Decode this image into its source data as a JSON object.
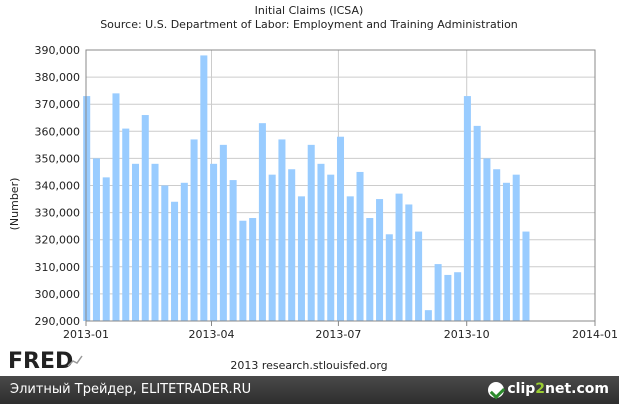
{
  "chart_data": {
    "type": "bar",
    "title": "Initial Claims (ICSA)",
    "subtitle": "Source: U.S. Department of Labor: Employment and Training Administration",
    "ylabel": "(Number)",
    "ylim": [
      290000,
      390000
    ],
    "y_ticks": [
      "290,000",
      "300,000",
      "310,000",
      "320,000",
      "330,000",
      "340,000",
      "350,000",
      "360,000",
      "370,000",
      "380,000",
      "390,000"
    ],
    "x_ticks": [
      "2013-01",
      "2013-04",
      "2013-07",
      "2013-10",
      "2014-01"
    ],
    "grid": true,
    "bar_color": "#99ccff",
    "x": [
      "2013-01-05",
      "2013-01-12",
      "2013-01-19",
      "2013-01-26",
      "2013-02-02",
      "2013-02-09",
      "2013-02-16",
      "2013-02-23",
      "2013-03-02",
      "2013-03-09",
      "2013-03-16",
      "2013-03-23",
      "2013-03-30",
      "2013-04-06",
      "2013-04-13",
      "2013-04-20",
      "2013-04-27",
      "2013-05-04",
      "2013-05-11",
      "2013-05-18",
      "2013-05-25",
      "2013-06-01",
      "2013-06-08",
      "2013-06-15",
      "2013-06-22",
      "2013-06-29",
      "2013-07-06",
      "2013-07-13",
      "2013-07-20",
      "2013-07-27",
      "2013-08-03",
      "2013-08-10",
      "2013-08-17",
      "2013-08-24",
      "2013-08-31",
      "2013-09-07",
      "2013-09-14",
      "2013-09-21",
      "2013-09-28",
      "2013-10-05",
      "2013-10-12",
      "2013-10-19",
      "2013-10-26",
      "2013-11-02",
      "2013-11-09",
      "2013-11-16"
    ],
    "values": [
      373000,
      350000,
      343000,
      374000,
      361000,
      348000,
      366000,
      348000,
      340000,
      334000,
      341000,
      357000,
      388000,
      348000,
      355000,
      342000,
      327000,
      328000,
      363000,
      344000,
      357000,
      346000,
      336000,
      355000,
      348000,
      344000,
      358000,
      336000,
      345000,
      328000,
      335000,
      322000,
      337000,
      333000,
      323000,
      294000,
      311000,
      307000,
      308000,
      373000,
      362000,
      350000,
      346000,
      341000,
      344000,
      323000
    ]
  },
  "footer": {
    "logo": "FRED",
    "credit": "2013 research.stlouisfed.org",
    "watermark": "Элитный Трейдер, ELITETRADER.RU",
    "brand_pre": "clip",
    "brand_mid": "2",
    "brand_post": "net.com"
  }
}
